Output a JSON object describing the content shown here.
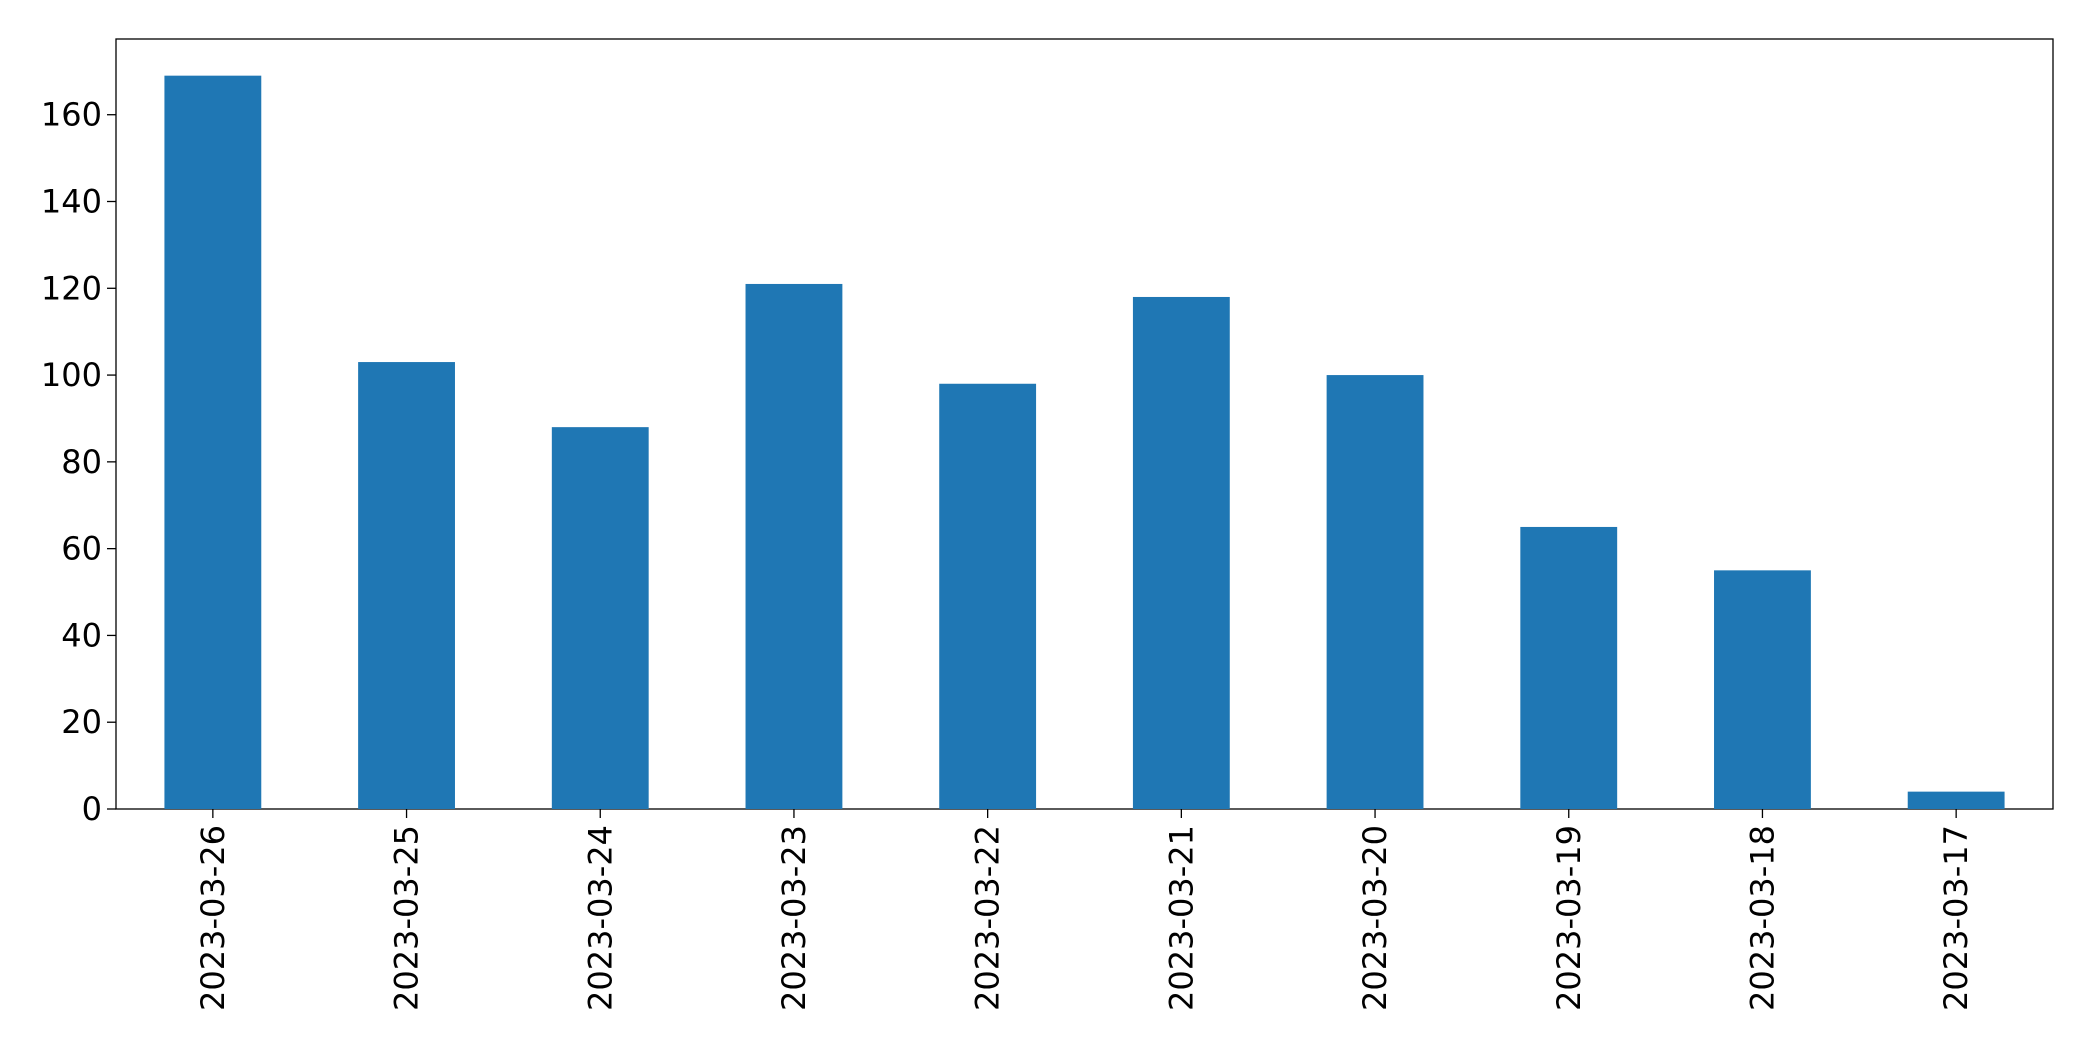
{
  "chart_data": {
    "type": "bar",
    "categories": [
      "2023-03-26",
      "2023-03-25",
      "2023-03-24",
      "2023-03-23",
      "2023-03-22",
      "2023-03-21",
      "2023-03-20",
      "2023-03-19",
      "2023-03-18",
      "2023-03-17"
    ],
    "values": [
      169,
      103,
      88,
      121,
      98,
      118,
      100,
      65,
      55,
      4
    ],
    "color": "#1f77b4",
    "ylim": [
      0,
      177.45
    ],
    "yticks": [
      0,
      20,
      40,
      60,
      80,
      100,
      120,
      140,
      160
    ],
    "grid": false
  }
}
